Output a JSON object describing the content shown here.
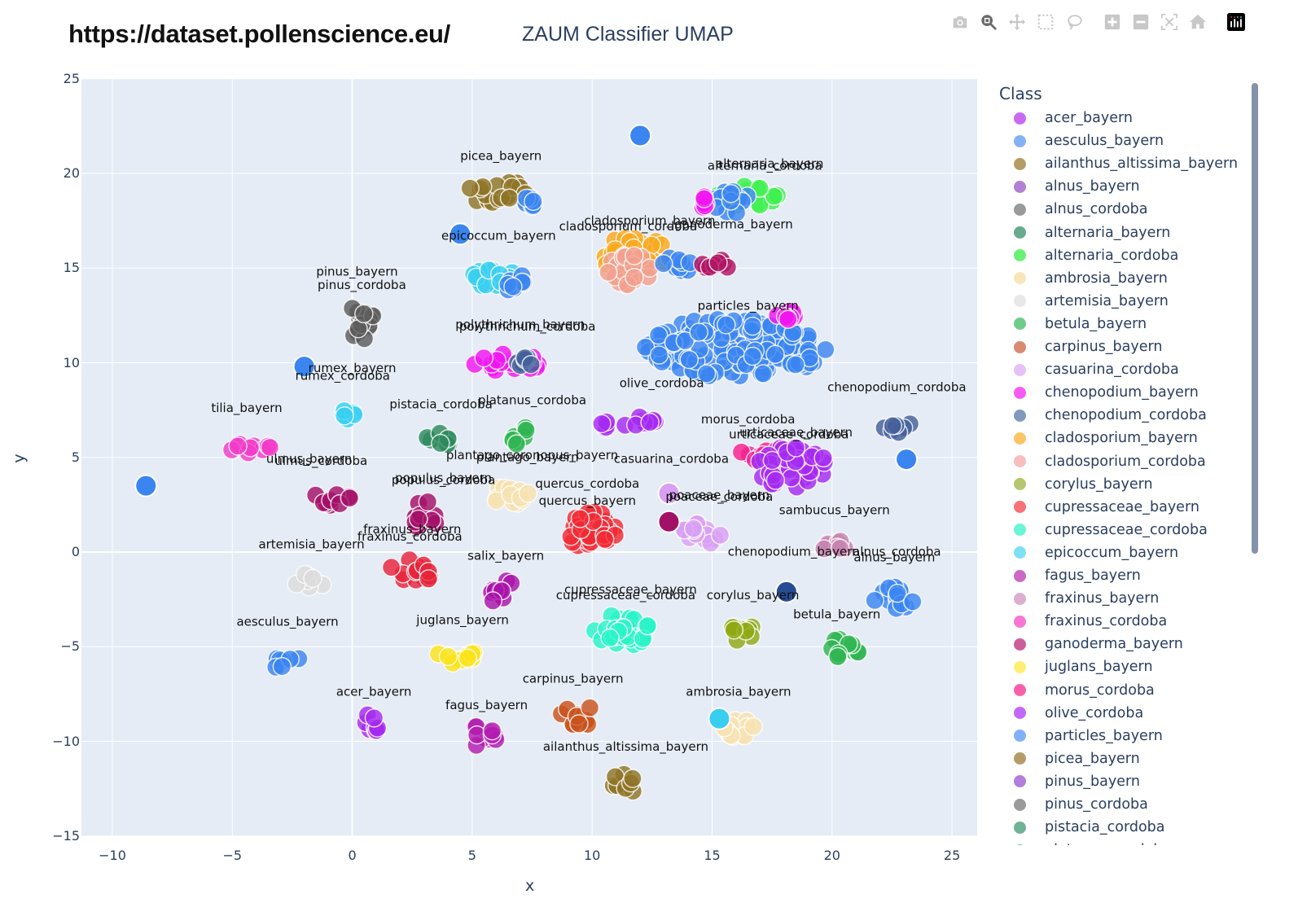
{
  "header": {
    "url": "https://dataset.pollenscience.eu/",
    "title": "ZAUM Classifier UMAP"
  },
  "modebar": {
    "buttons": [
      {
        "name": "camera-icon",
        "label": "Download plot as png"
      },
      {
        "name": "zoom-icon",
        "label": "Zoom",
        "active": true
      },
      {
        "name": "pan-icon",
        "label": "Pan"
      },
      {
        "name": "box-select-icon",
        "label": "Box Select"
      },
      {
        "name": "lasso-select-icon",
        "label": "Lasso Select"
      },
      {
        "name": "zoom-in-icon",
        "label": "Zoom in"
      },
      {
        "name": "zoom-out-icon",
        "label": "Zoom out"
      },
      {
        "name": "autoscale-icon",
        "label": "Autoscale"
      },
      {
        "name": "reset-axes-icon",
        "label": "Reset axes"
      },
      {
        "name": "plotly-logo-icon",
        "label": "Produced with Plotly"
      }
    ]
  },
  "legend": {
    "title": "Class",
    "items": [
      {
        "label": "acer_bayern",
        "color": "#c050f0"
      },
      {
        "label": "aesculus_bayern",
        "color": "#6fa3f5"
      },
      {
        "label": "ailanthus_altissima_bayern",
        "color": "#a88a4a"
      },
      {
        "label": "alnus_bayern",
        "color": "#a56bcf"
      },
      {
        "label": "alnus_cordoba",
        "color": "#888888"
      },
      {
        "label": "alternaria_bayern",
        "color": "#4f9a7a"
      },
      {
        "label": "alternaria_cordoba",
        "color": "#4cf05a"
      },
      {
        "label": "ambrosia_bayern",
        "color": "#f6e2b0"
      },
      {
        "label": "artemisia_bayern",
        "color": "#e4e4e4"
      },
      {
        "label": "betula_bayern",
        "color": "#55c476"
      },
      {
        "label": "carpinus_bayern",
        "color": "#d37556"
      },
      {
        "label": "casuarina_cordoba",
        "color": "#e2b6f4"
      },
      {
        "label": "chenopodium_bayern",
        "color": "#f43ff0"
      },
      {
        "label": "chenopodium_cordoba",
        "color": "#6b86b4"
      },
      {
        "label": "cladosporium_bayern",
        "color": "#fbba4a"
      },
      {
        "label": "cladosporium_cordoba",
        "color": "#f6b3b3"
      },
      {
        "label": "corylus_bayern",
        "color": "#a8bc56"
      },
      {
        "label": "cupressaceae_bayern",
        "color": "#f45a62"
      },
      {
        "label": "cupressaceae_cordoba",
        "color": "#4ef4d0"
      },
      {
        "label": "epicoccum_bayern",
        "color": "#66dcf2"
      },
      {
        "label": "fagus_bayern",
        "color": "#c24fb8"
      },
      {
        "label": "fraxinus_bayern",
        "color": "#d6a0c8"
      },
      {
        "label": "fraxinus_cordoba",
        "color": "#f85ed0"
      },
      {
        "label": "ganoderma_bayern",
        "color": "#c24288"
      },
      {
        "label": "juglans_bayern",
        "color": "#fbec5a"
      },
      {
        "label": "morus_cordoba",
        "color": "#f8449c"
      },
      {
        "label": "olive_cordoba",
        "color": "#b84cf6"
      },
      {
        "label": "particles_bayern",
        "color": "#68a2fb"
      },
      {
        "label": "picea_bayern",
        "color": "#a8894c"
      },
      {
        "label": "pinus_bayern",
        "color": "#a466d6"
      },
      {
        "label": "pinus_cordoba",
        "color": "#888888"
      },
      {
        "label": "pistacia_cordoba",
        "color": "#55a684"
      },
      {
        "label": "platanus_cordoba",
        "color": "#55c476"
      }
    ]
  },
  "axes": {
    "x": {
      "title": "x",
      "ticks": [
        "−10",
        "−5",
        "0",
        "5",
        "10",
        "15",
        "20",
        "25"
      ],
      "values": [
        -10,
        -5,
        0,
        5,
        10,
        15,
        20,
        25
      ]
    },
    "y": {
      "title": "y",
      "ticks": [
        "25",
        "20",
        "15",
        "10",
        "5",
        "0",
        "−5",
        "−10",
        "−15"
      ],
      "values": [
        25,
        20,
        15,
        10,
        5,
        0,
        -5,
        -10,
        -15
      ]
    }
  },
  "chart_data": {
    "type": "scatter",
    "title": "ZAUM Classifier UMAP",
    "xlabel": "x",
    "ylabel": "y",
    "xlim": [
      -11.3,
      26.0
    ],
    "ylim": [
      -15.2,
      25.0
    ],
    "grid": true,
    "legend_title": "Class",
    "legend_position": "right",
    "annotations": [
      {
        "text": "picea_bayern",
        "x": 6.2,
        "y": 20.7
      },
      {
        "text": "alternaria_bayern",
        "x": 17.4,
        "y": 20.3
      },
      {
        "text": "alternaria_cordoba",
        "x": 17.2,
        "y": 20.2
      },
      {
        "text": "cladosporium_bayern",
        "x": 12.4,
        "y": 17.3
      },
      {
        "text": "cladosporium_cordoba",
        "x": 11.5,
        "y": 17.0
      },
      {
        "text": "ganoderma_bayern",
        "x": 15.9,
        "y": 17.1
      },
      {
        "text": "epicoccum_bayern",
        "x": 6.1,
        "y": 16.5
      },
      {
        "text": "pinus_bayern",
        "x": 0.2,
        "y": 14.6
      },
      {
        "text": "pinus_cordoba",
        "x": 0.4,
        "y": 13.9
      },
      {
        "text": "particles_bayern",
        "x": 16.5,
        "y": 12.8
      },
      {
        "text": "polythrichum_bayern",
        "x": 7.0,
        "y": 11.8
      },
      {
        "text": "polythrichum_cordoba",
        "x": 7.3,
        "y": 11.7
      },
      {
        "text": "rumex_bayern",
        "x": 0.0,
        "y": 9.5
      },
      {
        "text": "rumex_cordoba",
        "x": -0.4,
        "y": 9.1
      },
      {
        "text": "olive_cordoba",
        "x": 12.9,
        "y": 8.7
      },
      {
        "text": "chenopodium_cordoba",
        "x": 22.7,
        "y": 8.5
      },
      {
        "text": "tilia_bayern",
        "x": -4.4,
        "y": 7.4
      },
      {
        "text": "pistacia_cordoba",
        "x": 3.7,
        "y": 7.6
      },
      {
        "text": "platanus_cordoba",
        "x": 7.5,
        "y": 7.8
      },
      {
        "text": "morus_cordoba",
        "x": 16.5,
        "y": 6.8
      },
      {
        "text": "urticaceae_bayern",
        "x": 18.5,
        "y": 6.1
      },
      {
        "text": "urticaceae_cordoba",
        "x": 18.2,
        "y": 6.0
      },
      {
        "text": "ulmus_bayern",
        "x": -1.8,
        "y": 4.7
      },
      {
        "text": "ulmus_cordoba",
        "x": -1.3,
        "y": 4.6
      },
      {
        "text": "plantago_coronopus_bayern",
        "x": 7.5,
        "y": 4.9
      },
      {
        "text": "plantago_bayern",
        "x": 7.3,
        "y": 4.8
      },
      {
        "text": "casuarina_cordoba",
        "x": 13.3,
        "y": 4.7
      },
      {
        "text": "populus_bayern",
        "x": 3.8,
        "y": 3.7
      },
      {
        "text": "populus_cordoba",
        "x": 3.8,
        "y": 3.6
      },
      {
        "text": "quercus_cordoba",
        "x": 9.8,
        "y": 3.4
      },
      {
        "text": "quercus_bayern",
        "x": 9.8,
        "y": 2.5
      },
      {
        "text": "poaceae_bayern",
        "x": 15.3,
        "y": 2.8
      },
      {
        "text": "poaceae_cordoba",
        "x": 15.3,
        "y": 2.7
      },
      {
        "text": "sambucus_bayern",
        "x": 20.1,
        "y": 2.0
      },
      {
        "text": "fraxinus_bayern",
        "x": 2.5,
        "y": 1.0
      },
      {
        "text": "fraxinus_cordoba",
        "x": 2.4,
        "y": 0.6
      },
      {
        "text": "artemisia_bayern",
        "x": -1.7,
        "y": 0.2
      },
      {
        "text": "chenopodium_bayern",
        "x": 18.4,
        "y": -0.2
      },
      {
        "text": "alnus_cordoba",
        "x": 22.7,
        "y": -0.2
      },
      {
        "text": "alnus_bayern",
        "x": 22.6,
        "y": -0.5
      },
      {
        "text": "salix_bayern",
        "x": 6.4,
        "y": -0.4
      },
      {
        "text": "cupressaceae_bayern",
        "x": 11.6,
        "y": -2.2
      },
      {
        "text": "cupressaceae_cordoba",
        "x": 11.4,
        "y": -2.5
      },
      {
        "text": "corylus_bayern",
        "x": 16.7,
        "y": -2.5
      },
      {
        "text": "betula_bayern",
        "x": 20.2,
        "y": -3.5
      },
      {
        "text": "aesculus_bayern",
        "x": -2.7,
        "y": -3.9
      },
      {
        "text": "juglans_bayern",
        "x": 4.6,
        "y": -3.8
      },
      {
        "text": "carpinus_bayern",
        "x": 9.2,
        "y": -6.9
      },
      {
        "text": "acer_bayern",
        "x": 0.9,
        "y": -7.6
      },
      {
        "text": "ambrosia_bayern",
        "x": 16.1,
        "y": -7.6
      },
      {
        "text": "fagus_bayern",
        "x": 5.6,
        "y": -8.3
      },
      {
        "text": "ailanthus_altissima_bayern",
        "x": 11.4,
        "y": -10.5
      }
    ],
    "clusters": [
      {
        "class": "picea_bayern",
        "x": 6.2,
        "y": 19.0,
        "color": "#8e7426",
        "rx": 1.5,
        "ry": 0.6
      },
      {
        "class": "particles_bayern",
        "x": 7.6,
        "y": 18.5,
        "color": "#3a85f0",
        "rx": 0.4,
        "ry": 0.4
      },
      {
        "class": "alternaria_cordoba",
        "x": 16.6,
        "y": 18.8,
        "color": "#3ef04f",
        "rx": 1.4,
        "ry": 0.6
      },
      {
        "class": "particles_bayern",
        "x": 15.8,
        "y": 18.5,
        "color": "#3a85f0",
        "rx": 0.8,
        "ry": 0.6
      },
      {
        "class": "chenopodium_bayern",
        "x": 14.8,
        "y": 18.5,
        "color": "#f015f0",
        "rx": 0.35,
        "ry": 0.35
      },
      {
        "class": "cladosporium_bayern",
        "x": 11.8,
        "y": 15.7,
        "color": "#f9a81e",
        "rx": 1.4,
        "ry": 1.0
      },
      {
        "class": "cladosporium_cordoba",
        "x": 11.6,
        "y": 14.9,
        "color": "#f2a08e",
        "rx": 1.0,
        "ry": 0.8
      },
      {
        "class": "particles_bayern",
        "x": 13.6,
        "y": 15.2,
        "color": "#3a85f0",
        "rx": 0.9,
        "ry": 0.4
      },
      {
        "class": "ganoderma_bayern",
        "x": 15.4,
        "y": 15.2,
        "color": "#b01564",
        "rx": 1.0,
        "ry": 0.25
      },
      {
        "class": "epicoccum_bayern",
        "x": 5.8,
        "y": 14.6,
        "color": "#38cef0",
        "rx": 0.9,
        "ry": 0.6
      },
      {
        "class": "particles_bayern",
        "x": 6.6,
        "y": 14.3,
        "color": "#3a85f0",
        "rx": 0.6,
        "ry": 0.5
      },
      {
        "class": "pinus_cordoba",
        "x": 0.4,
        "y": 12.3,
        "color": "#5c5c5c",
        "rx": 0.5,
        "ry": 1.2
      },
      {
        "class": "particles_bayern",
        "x": 16.0,
        "y": 10.8,
        "color": "#3a85f0",
        "rx": 3.8,
        "ry": 1.6
      },
      {
        "class": "chenopodium_bayern",
        "x": 18.2,
        "y": 12.6,
        "color": "#f015f0",
        "rx": 0.5,
        "ry": 0.4
      },
      {
        "class": "chenopodium_bayern",
        "x": 6.5,
        "y": 10.0,
        "color": "#f015f0",
        "rx": 1.5,
        "ry": 0.5
      },
      {
        "class": "chenopodium_cordoba",
        "x": 7.3,
        "y": 10.0,
        "color": "#44609a",
        "rx": 0.5,
        "ry": 0.35
      },
      {
        "class": "olive_cordoba",
        "x": 11.5,
        "y": 6.8,
        "color": "#a52bf0",
        "rx": 1.2,
        "ry": 0.45
      },
      {
        "class": "chenopodium_cordoba",
        "x": 22.8,
        "y": 6.7,
        "color": "#44609a",
        "rx": 0.8,
        "ry": 0.4
      },
      {
        "class": "morus_cordoba",
        "x": 17.0,
        "y": 5.1,
        "color": "#f71e8c",
        "rx": 1.0,
        "ry": 0.5
      },
      {
        "class": "olive_cordoba",
        "x": 18.3,
        "y": 4.5,
        "color": "#a52bf0",
        "rx": 1.6,
        "ry": 1.1
      },
      {
        "class": "tilia_bayern",
        "x": -4.3,
        "y": 5.6,
        "color": "#f23bc8",
        "rx": 0.9,
        "ry": 0.4
      },
      {
        "class": "epicoccum_bayern",
        "x": -0.1,
        "y": 7.4,
        "color": "#38cef0",
        "rx": 0.4,
        "ry": 0.4
      },
      {
        "class": "pistacia_cordoba",
        "x": 3.5,
        "y": 5.8,
        "color": "#2e8a5e",
        "rx": 0.6,
        "ry": 0.5
      },
      {
        "class": "platanus_cordoba",
        "x": 7.1,
        "y": 6.0,
        "color": "#2fb452",
        "rx": 0.5,
        "ry": 0.6
      },
      {
        "class": "ulmus_bayern",
        "x": -0.8,
        "y": 2.8,
        "color": "#a31068",
        "rx": 0.9,
        "ry": 0.4
      },
      {
        "class": "populus_bayern",
        "x": 3.0,
        "y": 1.9,
        "color": "#a31068",
        "rx": 0.6,
        "ry": 0.8
      },
      {
        "class": "ambrosia_bayern",
        "x": 6.6,
        "y": 3.0,
        "color": "#f6e2b0",
        "rx": 0.8,
        "ry": 0.6
      },
      {
        "class": "cupressaceae_bayern",
        "x": 10.0,
        "y": 1.1,
        "color": "#f02a34",
        "rx": 1.0,
        "ry": 1.1
      },
      {
        "class": "casuarina_cordoba",
        "x": 14.6,
        "y": 1.0,
        "color": "#d8a0f4",
        "rx": 1.0,
        "ry": 0.6
      },
      {
        "class": "fraxinus_bayern",
        "x": 20.1,
        "y": 0.3,
        "color": "#c684ae",
        "rx": 0.5,
        "ry": 0.35
      },
      {
        "class": "cupressaceae_bayern",
        "x": 2.4,
        "y": -1.1,
        "color": "#e6233a",
        "rx": 1.0,
        "ry": 0.7
      },
      {
        "class": "artemisia_bayern",
        "x": -1.8,
        "y": -1.6,
        "color": "#dcdcdc",
        "rx": 0.7,
        "ry": 0.45
      },
      {
        "class": "fagus_bayern",
        "x": 6.2,
        "y": -2.0,
        "color": "#a813a8",
        "rx": 0.5,
        "ry": 0.8
      },
      {
        "class": "cupressaceae_cordoba",
        "x": 11.2,
        "y": -4.1,
        "color": "#2af4c8",
        "rx": 1.3,
        "ry": 0.9
      },
      {
        "class": "corylus_bayern",
        "x": 16.2,
        "y": -4.2,
        "color": "#8fa814",
        "rx": 0.5,
        "ry": 0.7
      },
      {
        "class": "particles_bayern",
        "x": 22.6,
        "y": -2.4,
        "color": "#3a85f0",
        "rx": 0.9,
        "ry": 0.6
      },
      {
        "class": "betula_bayern",
        "x": 20.4,
        "y": -5.2,
        "color": "#2fb452",
        "rx": 0.8,
        "ry": 0.6
      },
      {
        "class": "aesculus_bayern",
        "x": -2.7,
        "y": -5.8,
        "color": "#3a85f0",
        "rx": 0.7,
        "ry": 0.4
      },
      {
        "class": "juglans_bayern",
        "x": 4.4,
        "y": -5.6,
        "color": "#fbe31a",
        "rx": 1.0,
        "ry": 0.45
      },
      {
        "class": "carpinus_bayern",
        "x": 9.4,
        "y": -8.6,
        "color": "#c9521c",
        "rx": 0.9,
        "ry": 0.6
      },
      {
        "class": "acer_bayern",
        "x": 0.9,
        "y": -9.0,
        "color": "#a52bf0",
        "rx": 0.5,
        "ry": 0.5
      },
      {
        "class": "fagus_bayern",
        "x": 5.5,
        "y": -9.7,
        "color": "#b21db0",
        "rx": 0.6,
        "ry": 0.7
      },
      {
        "class": "ambrosia_bayern",
        "x": 16.0,
        "y": -9.2,
        "color": "#f6e2b0",
        "rx": 0.8,
        "ry": 0.6
      },
      {
        "class": "ailanthus_altissima_bayern",
        "x": 11.5,
        "y": -12.2,
        "color": "#8e7426",
        "rx": 0.8,
        "ry": 0.5
      }
    ],
    "outliers": [
      {
        "class": "particles_bayern",
        "x": 12.0,
        "y": 22.0,
        "color": "#3a85f0"
      },
      {
        "class": "particles_bayern",
        "x": 4.5,
        "y": 16.8,
        "color": "#3a85f0"
      },
      {
        "class": "particles_bayern",
        "x": -2.0,
        "y": 9.8,
        "color": "#3a85f0"
      },
      {
        "class": "particles_bayern",
        "x": -8.6,
        "y": 3.5,
        "color": "#3a85f0"
      },
      {
        "class": "particles_bayern",
        "x": 23.1,
        "y": 4.9,
        "color": "#3a85f0"
      },
      {
        "class": "chenopodium_cordoba",
        "x": 18.1,
        "y": -2.1,
        "color": "#274c94"
      },
      {
        "class": "casuarina_cordoba",
        "x": 13.2,
        "y": 3.1,
        "color": "#d8a0f4"
      },
      {
        "class": "ganoderma_bayern",
        "x": 13.2,
        "y": 1.6,
        "color": "#a31068"
      },
      {
        "class": "epicoccum_bayern",
        "x": 15.3,
        "y": -8.8,
        "color": "#38cef0"
      }
    ]
  }
}
